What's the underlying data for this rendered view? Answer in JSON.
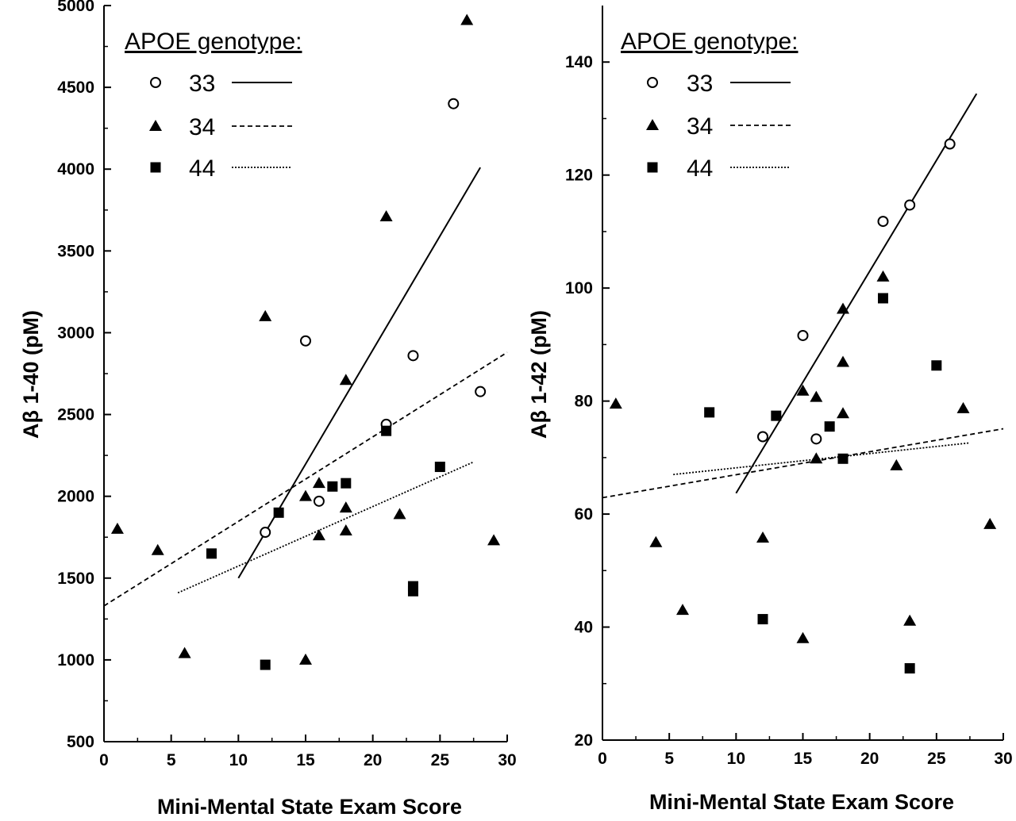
{
  "chart_data": [
    {
      "type": "scatter",
      "panel": "left",
      "title": "",
      "xlabel": "Mini-Mental State Exam Score",
      "ylabel": "Aβ 1-40 (pM)",
      "xlim": [
        0,
        30
      ],
      "ylim": [
        500,
        5000
      ],
      "xticks": [
        0,
        5,
        10,
        15,
        20,
        25,
        30
      ],
      "yticks": [
        500,
        1000,
        1500,
        2000,
        2500,
        3000,
        3500,
        4000,
        4500,
        5000
      ],
      "grid": false,
      "legend": {
        "title": "APOE genotype:",
        "placement": "top-left",
        "entries": [
          {
            "label": "33",
            "marker": "open-circle",
            "line": "solid"
          },
          {
            "label": "34",
            "marker": "filled-triangle",
            "line": "dashed"
          },
          {
            "label": "44",
            "marker": "filled-square",
            "line": "dotted"
          }
        ]
      },
      "series": [
        {
          "name": "33",
          "marker": "open-circle",
          "points": [
            [
              12,
              1780
            ],
            [
              15,
              2950
            ],
            [
              16,
              1970
            ],
            [
              21,
              2440
            ],
            [
              23,
              2860
            ],
            [
              26,
              4400
            ],
            [
              28,
              2640
            ]
          ]
        },
        {
          "name": "34",
          "marker": "filled-triangle",
          "points": [
            [
              1,
              1800
            ],
            [
              4,
              1670
            ],
            [
              6,
              1040
            ],
            [
              12,
              3100
            ],
            [
              15,
              2000
            ],
            [
              15,
              1000
            ],
            [
              16,
              2080
            ],
            [
              16,
              1760
            ],
            [
              18,
              2710
            ],
            [
              18,
              1930
            ],
            [
              18,
              1790
            ],
            [
              21,
              3710
            ],
            [
              22,
              1890
            ],
            [
              27,
              4910
            ],
            [
              29,
              1730
            ]
          ]
        },
        {
          "name": "44",
          "marker": "filled-square",
          "points": [
            [
              8,
              1650
            ],
            [
              12,
              970
            ],
            [
              13,
              1900
            ],
            [
              17,
              2060
            ],
            [
              18,
              2080
            ],
            [
              21,
              2400
            ],
            [
              23,
              1450
            ],
            [
              23,
              1420
            ],
            [
              25,
              2180
            ]
          ]
        }
      ],
      "fit_lines": [
        {
          "name": "33",
          "style": "solid",
          "x": [
            10,
            28
          ],
          "y": [
            1500,
            4010
          ]
        },
        {
          "name": "34",
          "style": "dashed",
          "x": [
            0,
            30
          ],
          "y": [
            1330,
            2880
          ]
        },
        {
          "name": "44",
          "style": "dotted",
          "x": [
            5.5,
            27.5
          ],
          "y": [
            1410,
            2210
          ]
        }
      ]
    },
    {
      "type": "scatter",
      "panel": "right",
      "title": "",
      "xlabel": "Mini-Mental State Exam Score",
      "ylabel": "Aβ 1-42 (pM)",
      "xlim": [
        0,
        30
      ],
      "ylim": [
        20,
        150
      ],
      "xticks": [
        0,
        5,
        10,
        15,
        20,
        25,
        30
      ],
      "yticks": [
        20,
        40,
        60,
        80,
        100,
        120,
        140
      ],
      "grid": false,
      "legend": {
        "title": "APOE genotype:",
        "placement": "top-left",
        "entries": [
          {
            "label": "33",
            "marker": "open-circle",
            "line": "solid"
          },
          {
            "label": "34",
            "marker": "filled-triangle",
            "line": "dashed"
          },
          {
            "label": "44",
            "marker": "filled-square",
            "line": "dotted"
          }
        ]
      },
      "series": [
        {
          "name": "33",
          "marker": "open-circle",
          "points": [
            [
              12,
              73.7
            ],
            [
              15,
              91.6
            ],
            [
              16,
              73.3
            ],
            [
              21,
              111.8
            ],
            [
              23,
              114.7
            ],
            [
              26,
              125.5
            ]
          ]
        },
        {
          "name": "34",
          "marker": "filled-triangle",
          "points": [
            [
              1,
              79.5
            ],
            [
              4,
              55
            ],
            [
              6,
              43
            ],
            [
              12,
              55.8
            ],
            [
              15,
              81.8
            ],
            [
              15,
              38
            ],
            [
              16,
              80.7
            ],
            [
              16,
              69.8
            ],
            [
              18,
              96.3
            ],
            [
              18,
              86.9
            ],
            [
              18,
              77.8
            ],
            [
              21,
              102
            ],
            [
              22,
              68.6
            ],
            [
              23,
              41.1
            ],
            [
              27,
              78.7
            ],
            [
              29,
              58.2
            ]
          ]
        },
        {
          "name": "44",
          "marker": "filled-square",
          "points": [
            [
              8,
              78
            ],
            [
              12,
              41.4
            ],
            [
              13,
              77.4
            ],
            [
              17,
              75.5
            ],
            [
              18,
              69.8
            ],
            [
              21,
              98.2
            ],
            [
              23,
              32.7
            ],
            [
              25,
              86.3
            ]
          ]
        }
      ],
      "fit_lines": [
        {
          "name": "33",
          "style": "solid",
          "x": [
            10,
            28
          ],
          "y": [
            63.7,
            134.4
          ]
        },
        {
          "name": "34",
          "style": "dashed",
          "x": [
            0,
            30
          ],
          "y": [
            62.9,
            75.1
          ]
        },
        {
          "name": "44",
          "style": "dotted",
          "x": [
            5.3,
            27.5
          ],
          "y": [
            67,
            72.6
          ]
        }
      ]
    }
  ]
}
